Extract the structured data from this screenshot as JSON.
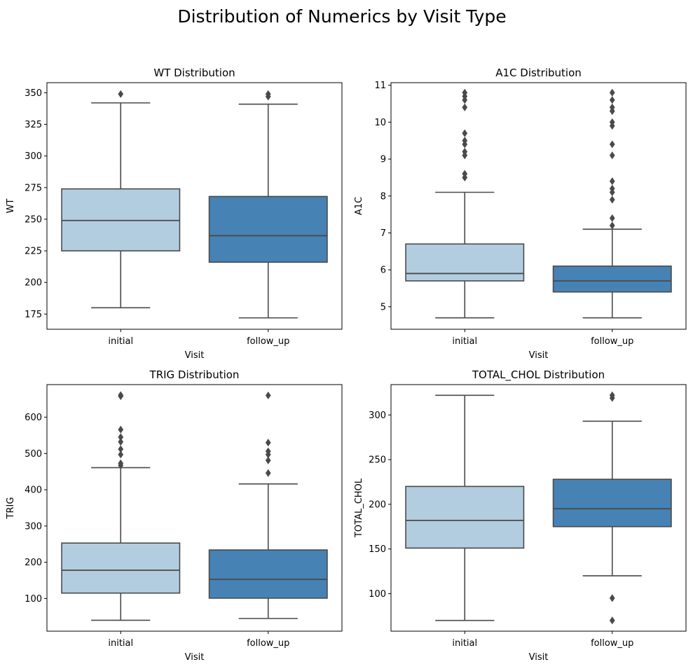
{
  "suptitle": "Distribution of Numerics by Visit Type",
  "colors": {
    "initial": "#b3cde0",
    "follow_up": "#4682b4",
    "line": "#4a4a4a"
  },
  "chart_data": [
    {
      "type": "box",
      "title": "WT Distribution",
      "xlabel": "Visit",
      "ylabel": "WT",
      "categories": [
        "initial",
        "follow_up"
      ],
      "ylim": [
        163,
        358
      ],
      "yticks": [
        175,
        200,
        225,
        250,
        275,
        300,
        325,
        350
      ],
      "boxes": [
        {
          "category": "initial",
          "whislo": 180,
          "q1": 225,
          "med": 249,
          "q3": 274,
          "whishi": 342,
          "fliers": [
            349
          ]
        },
        {
          "category": "follow_up",
          "whislo": 172,
          "q1": 216,
          "med": 237,
          "q3": 268,
          "whishi": 341,
          "fliers": [
            347,
            349
          ]
        }
      ]
    },
    {
      "type": "box",
      "title": "A1C Distribution",
      "xlabel": "Visit",
      "ylabel": "A1C",
      "categories": [
        "initial",
        "follow_up"
      ],
      "ylim": [
        4.39,
        11.07
      ],
      "yticks": [
        5,
        6,
        7,
        8,
        9,
        10,
        11
      ],
      "boxes": [
        {
          "category": "initial",
          "whislo": 4.7,
          "q1": 5.7,
          "med": 5.9,
          "q3": 6.7,
          "whishi": 8.1,
          "fliers": [
            8.5,
            8.6,
            9.1,
            9.2,
            9.4,
            9.5,
            9.7,
            10.4,
            10.6,
            10.7,
            10.8
          ]
        },
        {
          "category": "follow_up",
          "whislo": 4.7,
          "q1": 5.4,
          "med": 5.7,
          "q3": 6.1,
          "whishi": 7.1,
          "fliers": [
            7.2,
            7.4,
            7.9,
            8.1,
            8.2,
            8.4,
            9.1,
            9.4,
            9.9,
            10.0,
            10.3,
            10.4,
            10.6,
            10.8
          ]
        }
      ]
    },
    {
      "type": "box",
      "title": "TRIG Distribution",
      "xlabel": "Visit",
      "ylabel": "TRIG",
      "categories": [
        "initial",
        "follow_up"
      ],
      "ylim": [
        10,
        690
      ],
      "yticks": [
        100,
        200,
        300,
        400,
        500,
        600
      ],
      "boxes": [
        {
          "category": "initial",
          "whislo": 40,
          "q1": 115,
          "med": 178,
          "q3": 253,
          "whishi": 461,
          "fliers": [
            467,
            473,
            497,
            512,
            532,
            545,
            566,
            658,
            661
          ]
        },
        {
          "category": "follow_up",
          "whislo": 45,
          "q1": 101,
          "med": 153,
          "q3": 234,
          "whishi": 416,
          "fliers": [
            446,
            481,
            497,
            506,
            530,
            660
          ]
        }
      ]
    },
    {
      "type": "box",
      "title": "TOTAL_CHOL Distribution",
      "xlabel": "Visit",
      "ylabel": "TOTAL_CHOL",
      "categories": [
        "initial",
        "follow_up"
      ],
      "ylim": [
        58,
        334
      ],
      "yticks": [
        100,
        150,
        200,
        250,
        300
      ],
      "boxes": [
        {
          "category": "initial",
          "whislo": 70,
          "q1": 151,
          "med": 182,
          "q3": 220,
          "whishi": 322,
          "fliers": []
        },
        {
          "category": "follow_up",
          "whislo": 120,
          "q1": 175,
          "med": 195,
          "q3": 228,
          "whishi": 293,
          "fliers": [
            70,
            95,
            319,
            322
          ]
        }
      ]
    }
  ]
}
